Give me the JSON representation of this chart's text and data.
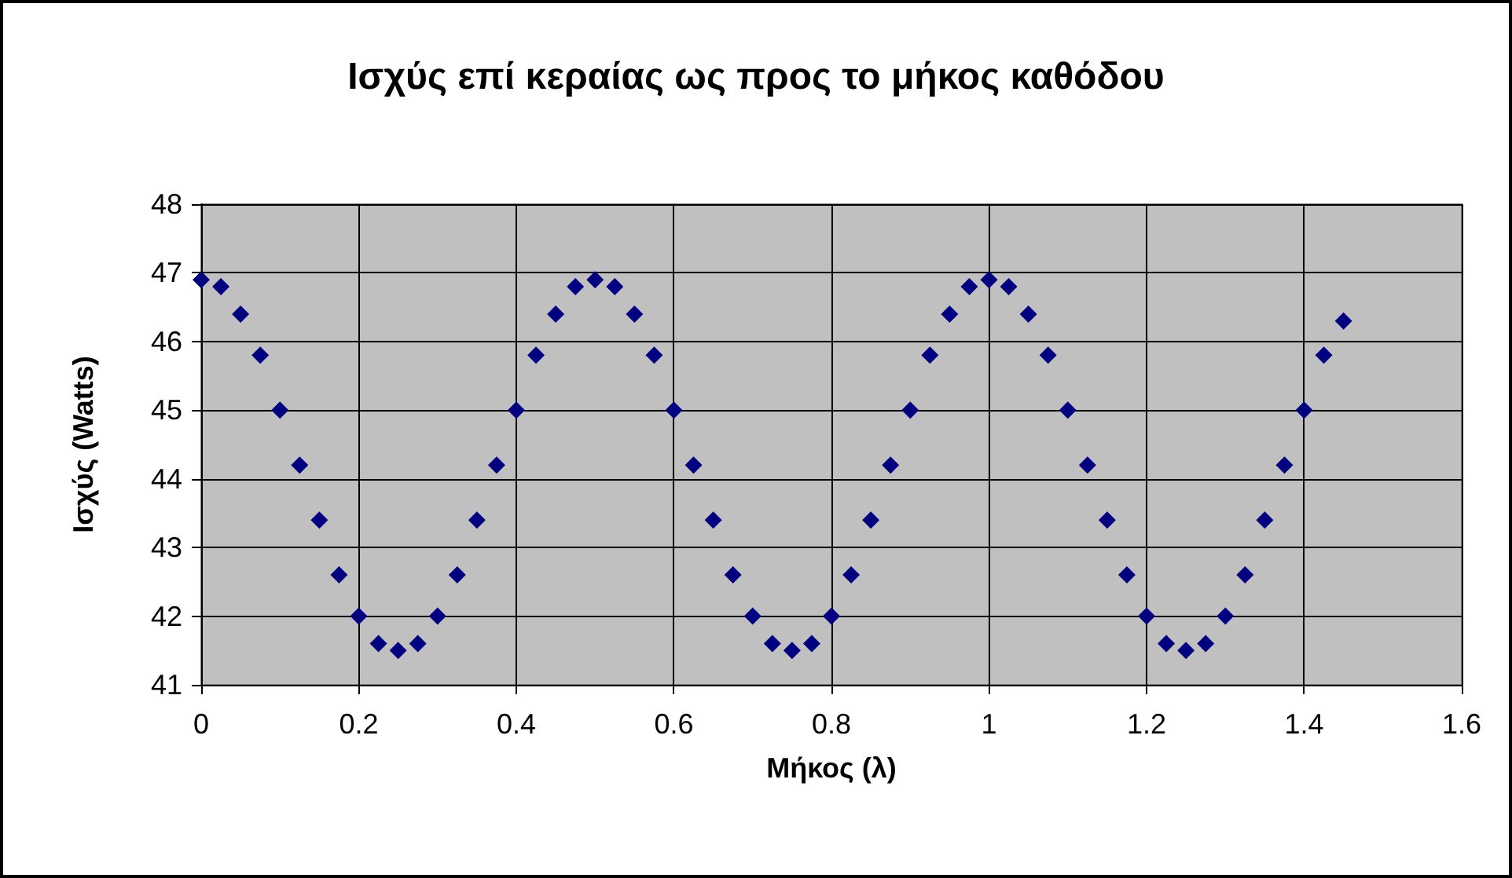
{
  "chart_data": {
    "type": "scatter",
    "title": "Ισχύς επί κεραίας ως προς το μήκος καθόδου",
    "xlabel": "Μήκος (λ)",
    "ylabel": "Ισχύς (Watts)",
    "x": [
      0,
      0.025,
      0.05,
      0.075,
      0.1,
      0.125,
      0.15,
      0.175,
      0.2,
      0.225,
      0.25,
      0.275,
      0.3,
      0.325,
      0.35,
      0.375,
      0.4,
      0.425,
      0.45,
      0.475,
      0.5,
      0.525,
      0.55,
      0.575,
      0.6,
      0.625,
      0.65,
      0.675,
      0.7,
      0.725,
      0.75,
      0.775,
      0.8,
      0.825,
      0.85,
      0.875,
      0.9,
      0.925,
      0.95,
      0.975,
      1,
      1.025,
      1.05,
      1.075,
      1.1,
      1.125,
      1.15,
      1.175,
      1.2,
      1.225,
      1.25,
      1.275,
      1.3,
      1.325,
      1.35,
      1.375,
      1.4,
      1.425,
      1.45
    ],
    "series": [
      {
        "color": "#000080",
        "values": [
          46.9,
          46.8,
          46.4,
          45.8,
          45.0,
          44.2,
          43.4,
          42.6,
          42.0,
          41.6,
          41.5,
          41.6,
          42.0,
          42.6,
          43.4,
          44.2,
          45.0,
          45.8,
          46.4,
          46.8,
          46.9,
          46.8,
          46.4,
          45.8,
          45.0,
          44.2,
          43.4,
          42.6,
          42.0,
          41.6,
          41.5,
          41.6,
          42.0,
          42.6,
          43.4,
          44.2,
          45.0,
          45.8,
          46.4,
          46.8,
          46.9,
          46.8,
          46.4,
          45.8,
          45.0,
          44.2,
          43.4,
          42.6,
          42.0,
          41.6,
          41.5,
          41.6,
          42.0,
          42.6,
          43.4,
          44.2,
          45.0,
          45.8,
          46.3
        ]
      }
    ],
    "xlim": [
      0,
      1.6
    ],
    "xticks": [
      0,
      0.2,
      0.4,
      0.6,
      0.8,
      1,
      1.2,
      1.4,
      1.6
    ],
    "ylim": [
      41,
      48
    ],
    "yticks": [
      41,
      42,
      43,
      44,
      45,
      46,
      47,
      48
    ],
    "grid": true,
    "marker": "diamond"
  }
}
